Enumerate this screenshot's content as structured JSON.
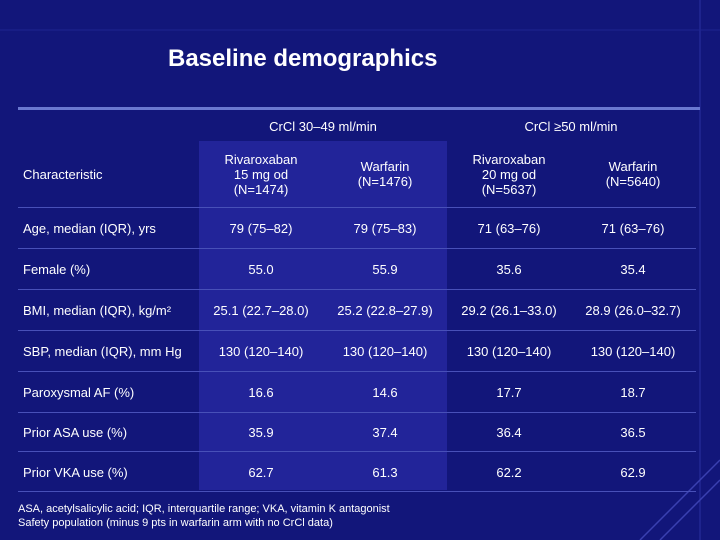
{
  "slide": {
    "title": "Baseline demographics",
    "accent_color": "#6a78d0",
    "background_color": "#12167a"
  },
  "table": {
    "group_headers": [
      "CrCl 30–49 ml/min",
      "CrCl ≥50 ml/min"
    ],
    "characteristic_header": "Characteristic",
    "column_headers": [
      "Rivaroxaban\n15 mg od\n(N=1474)",
      "Warfarin\n(N=1476)",
      "Rivaroxaban\n20 mg od\n(N=5637)",
      "Warfarin\n(N=5640)"
    ],
    "rows": [
      {
        "label": "Age, median (IQR), yrs",
        "values": [
          "79 (75–82)",
          "79 (75–83)",
          "71 (63–76)",
          "71 (63–76)"
        ]
      },
      {
        "label": "Female (%)",
        "values": [
          "55.0",
          "55.9",
          "35.6",
          "35.4"
        ]
      },
      {
        "label": "BMI, median (IQR), kg/m²",
        "values": [
          "25.1 (22.7–28.0)",
          "25.2 (22.8–27.9)",
          "29.2 (26.1–33.0)",
          "28.9 (26.0–32.7)"
        ]
      },
      {
        "label": "SBP, median (IQR), mm Hg",
        "values": [
          "130 (120–140)",
          "130 (120–140)",
          "130 (120–140)",
          "130 (120–140)"
        ]
      },
      {
        "label": "Paroxysmal AF (%)",
        "values": [
          "16.6",
          "14.6",
          "17.7",
          "18.7"
        ]
      },
      {
        "label": "Prior ASA use (%)",
        "values": [
          "35.9",
          "37.4",
          "36.4",
          "36.5"
        ]
      },
      {
        "label": "Prior VKA use (%)",
        "values": [
          "62.7",
          "61.3",
          "62.2",
          "62.9"
        ]
      }
    ]
  },
  "footnotes": [
    "ASA, acetylsalicylic acid; IQR, interquartile range; VKA, vitamin K antagonist",
    "Safety population (minus 9 pts in warfarin arm with no CrCl data)"
  ]
}
